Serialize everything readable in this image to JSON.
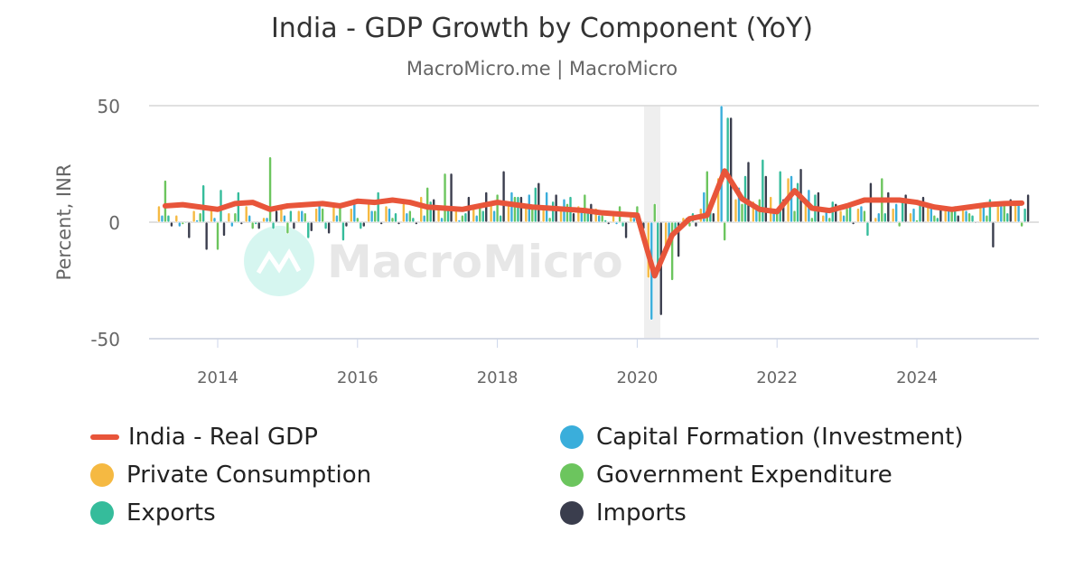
{
  "chart_data": {
    "type": "bar",
    "title": "India - GDP Growth by Component (YoY)",
    "subtitle": "MacroMicro.me | MacroMicro",
    "watermark": "MacroMicro",
    "ylabel": "Percent, INR",
    "xlabel": "",
    "ylim": [
      -50,
      50
    ],
    "yticks": [
      50,
      0,
      -50
    ],
    "xticks": [
      "2014",
      "2016",
      "2018",
      "2020",
      "2022",
      "2024"
    ],
    "grid": true,
    "legend_placement": "bottom",
    "shaded_period": [
      "2020-Q1",
      "2020-Q2"
    ],
    "x": [
      "2013-Q2",
      "2013-Q3",
      "2013-Q4",
      "2014-Q1",
      "2014-Q2",
      "2014-Q3",
      "2014-Q4",
      "2015-Q1",
      "2015-Q2",
      "2015-Q3",
      "2015-Q4",
      "2016-Q1",
      "2016-Q2",
      "2016-Q3",
      "2016-Q4",
      "2017-Q1",
      "2017-Q2",
      "2017-Q3",
      "2017-Q4",
      "2018-Q1",
      "2018-Q2",
      "2018-Q3",
      "2018-Q4",
      "2019-Q1",
      "2019-Q2",
      "2019-Q3",
      "2019-Q4",
      "2020-Q1",
      "2020-Q2",
      "2020-Q3",
      "2020-Q4",
      "2021-Q1",
      "2021-Q2",
      "2021-Q3",
      "2021-Q4",
      "2022-Q1",
      "2022-Q2",
      "2022-Q3",
      "2022-Q4",
      "2023-Q1",
      "2023-Q2",
      "2023-Q3",
      "2023-Q4",
      "2024-Q1",
      "2024-Q2",
      "2024-Q3",
      "2024-Q4",
      "2025-Q1",
      "2025-Q2",
      "2025-Q3"
    ],
    "series": [
      {
        "name": "India - Real GDP",
        "type": "line",
        "color": "#e8553a",
        "values": [
          7.0,
          7.5,
          6.5,
          5.5,
          8.0,
          8.5,
          5.5,
          7.0,
          7.5,
          8.0,
          7.0,
          9.0,
          8.5,
          9.5,
          8.5,
          6.5,
          6.0,
          5.5,
          7.0,
          8.5,
          7.5,
          6.5,
          6.0,
          5.5,
          5.0,
          4.0,
          3.5,
          3.0,
          -23.0,
          -5.5,
          1.5,
          3.0,
          22.0,
          10.0,
          5.5,
          4.5,
          13.5,
          6.0,
          5.0,
          7.0,
          9.5,
          9.5,
          9.5,
          8.5,
          6.5,
          5.5,
          6.5,
          7.5,
          8.0,
          8.2
        ]
      },
      {
        "name": "Private Consumption",
        "type": "bar",
        "color": "#f5b942",
        "values": [
          7,
          3,
          5,
          6,
          4,
          7,
          2,
          6,
          5,
          6,
          7,
          6,
          8,
          7,
          8,
          11,
          6,
          5,
          6,
          8,
          7,
          8,
          7,
          6,
          7,
          6,
          5,
          4,
          -24,
          -10,
          2,
          6,
          19,
          10,
          9,
          11,
          19,
          9,
          3,
          5,
          6,
          2,
          6,
          4,
          7,
          6,
          7,
          7,
          8,
          9
        ]
      },
      {
        "name": "Capital Formation (Investment)",
        "type": "bar",
        "color": "#3aaedb",
        "values": [
          3,
          -2,
          1,
          2,
          -2,
          3,
          2,
          3,
          5,
          9,
          3,
          10,
          5,
          6,
          4,
          3,
          2,
          1,
          3,
          5,
          13,
          12,
          13,
          10,
          5,
          3,
          -1,
          2,
          -42,
          -7,
          2,
          13,
          55,
          15,
          7,
          6,
          20,
          14,
          5,
          3,
          7,
          4,
          8,
          6,
          7,
          5,
          5,
          8,
          7,
          8
        ]
      },
      {
        "name": "Government Expenditure",
        "type": "bar",
        "color": "#6cc55e",
        "values": [
          18,
          -1,
          4,
          -12,
          4,
          -3,
          28,
          -5,
          4,
          6,
          7,
          2,
          5,
          2,
          5,
          15,
          21,
          3,
          7,
          12,
          11,
          6,
          2,
          8,
          12,
          3,
          7,
          7,
          8,
          -25,
          -2,
          22,
          -8,
          8,
          10,
          5,
          5,
          2,
          2,
          6,
          5,
          19,
          -2,
          1,
          3,
          5,
          4,
          3,
          9,
          -2
        ]
      },
      {
        "name": "Exports",
        "type": "bar",
        "color": "#35bc9b",
        "values": [
          3,
          0,
          16,
          14,
          13,
          -1,
          -3,
          5,
          -7,
          -3,
          -8,
          -3,
          13,
          4,
          2,
          9,
          6,
          4,
          5,
          3,
          11,
          15,
          9,
          11,
          5,
          1,
          -2,
          -3,
          -22,
          -5,
          4,
          8,
          45,
          20,
          27,
          22,
          17,
          12,
          9,
          7,
          -6,
          4,
          9,
          8,
          2,
          7,
          3,
          10,
          4,
          6
        ]
      },
      {
        "name": "Imports",
        "type": "bar",
        "color": "#3a3d4d",
        "values": [
          -2,
          -7,
          -12,
          -6,
          -1,
          -3,
          5,
          -3,
          -4,
          -5,
          -2,
          -2,
          -1,
          -1,
          -1,
          10,
          21,
          11,
          13,
          22,
          11,
          17,
          12,
          4,
          8,
          -1,
          -7,
          -3,
          -40,
          -15,
          -2,
          4,
          45,
          26,
          20,
          10,
          23,
          13,
          8,
          -1,
          17,
          13,
          12,
          11,
          7,
          3,
          0,
          -11,
          10,
          12
        ]
      }
    ]
  }
}
